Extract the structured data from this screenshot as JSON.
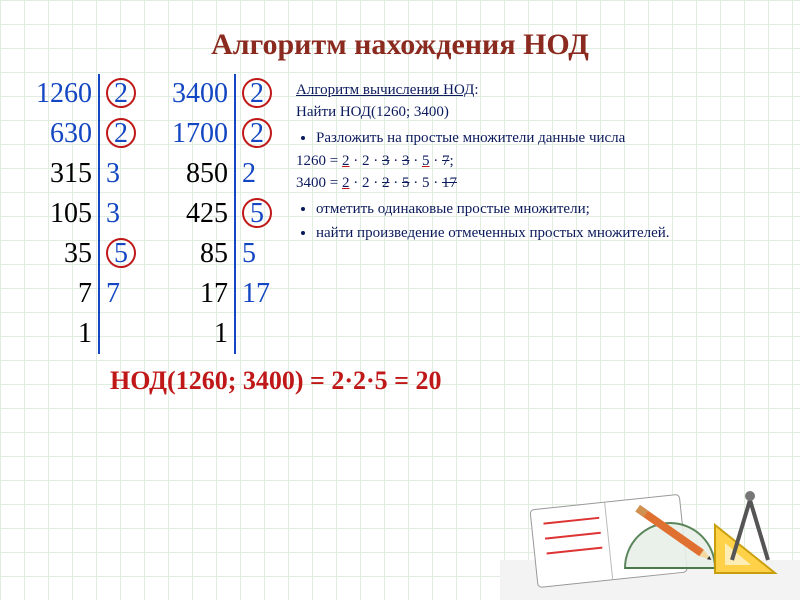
{
  "title": "Алгоритм нахождения НОД",
  "factorizations": [
    {
      "rows": [
        {
          "n": "1260",
          "p": "2",
          "blue": true,
          "circle": true
        },
        {
          "n": "630",
          "p": "2",
          "blue": true,
          "circle": true
        },
        {
          "n": "315",
          "p": "3",
          "blue": false,
          "circle": false
        },
        {
          "n": "105",
          "p": "3",
          "blue": false,
          "circle": false
        },
        {
          "n": "35",
          "p": "5",
          "blue": false,
          "circle": true
        },
        {
          "n": "7",
          "p": "7",
          "blue": false,
          "circle": false
        },
        {
          "n": "1",
          "p": "",
          "blue": false,
          "circle": false
        }
      ]
    },
    {
      "rows": [
        {
          "n": "3400",
          "p": "2",
          "blue": true,
          "circle": true
        },
        {
          "n": "1700",
          "p": "2",
          "blue": true,
          "circle": true
        },
        {
          "n": "850",
          "p": "2",
          "blue": false,
          "circle": false
        },
        {
          "n": "425",
          "p": "5",
          "blue": false,
          "circle": true
        },
        {
          "n": "85",
          "p": "5",
          "blue": false,
          "circle": false
        },
        {
          "n": "17",
          "p": "17",
          "blue": false,
          "circle": false
        },
        {
          "n": "1",
          "p": "",
          "blue": false,
          "circle": false
        }
      ]
    }
  ],
  "algo": {
    "heading_pre": "Алгоритм вычисления ",
    "heading_u": "НОД",
    "heading_post": ":",
    "line2": "Найти НОД(1260; 3400)",
    "bullets": [
      "Разложить на простые множители данные числа",
      "отметить одинаковые простые множители;",
      "найти произведение отмеченных простых множителей."
    ],
    "decomp1_label": "1260 = ",
    "decomp1_parts": [
      {
        "t": "2",
        "hl": true
      },
      {
        "t": " · "
      },
      {
        "t": "2"
      },
      {
        "t": " · "
      },
      {
        "t": "3",
        "strike": true
      },
      {
        "t": " · "
      },
      {
        "t": "3",
        "strike": true
      },
      {
        "t": " · "
      },
      {
        "t": "5",
        "hl": true
      },
      {
        "t": " · "
      },
      {
        "t": "7",
        "strike": true
      },
      {
        "t": ";"
      }
    ],
    "decomp2_label": "3400 = ",
    "decomp2_parts": [
      {
        "t": "2",
        "hl": true
      },
      {
        "t": " · "
      },
      {
        "t": "2"
      },
      {
        "t": " · "
      },
      {
        "t": "2",
        "strike": true
      },
      {
        "t": " · "
      },
      {
        "t": "5",
        "strike": true
      },
      {
        "t": " · "
      },
      {
        "t": "5"
      },
      {
        "t": " · "
      },
      {
        "t": "17",
        "strike": true
      }
    ]
  },
  "result": "НОД(1260; 3400) = 2·2·5 = 20",
  "colors": {
    "title": "#8b2a1f",
    "blue": "#1246c2",
    "red": "#c01818",
    "ink": "#0b1a5c",
    "grid": "#c8e0c8"
  }
}
